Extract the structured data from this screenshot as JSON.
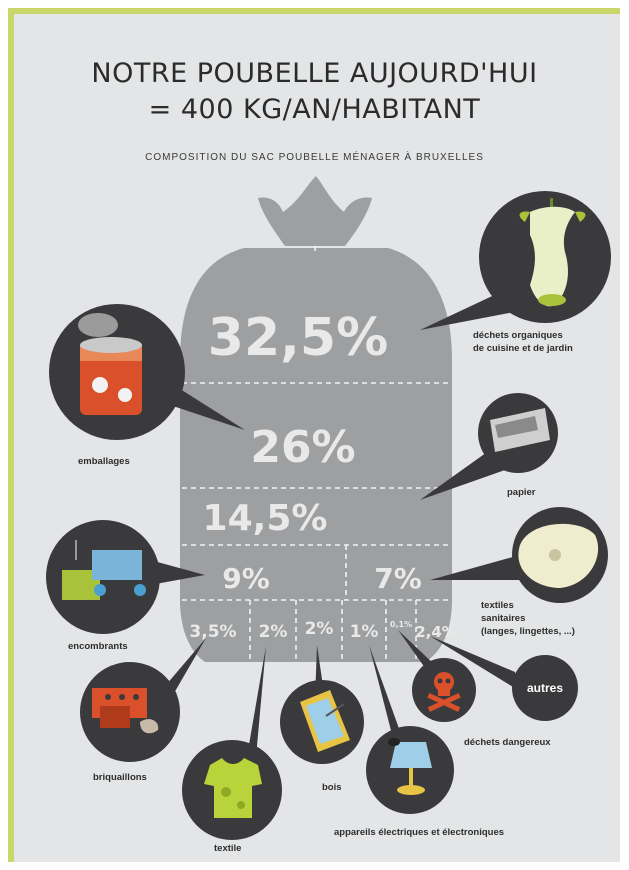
{
  "header": {
    "title_line1": "NOTRE POUBELLE AUJOURD'HUI",
    "title_line2": "= 400 KG/AN/HABITANT",
    "subtitle": "COMPOSITION DU SAC POUBELLE MÉNAGER À BRUXELLES"
  },
  "segments": [
    {
      "id": "organiques",
      "value": "32,5%",
      "label": "déchets organiques\nde cuisine et de jardin",
      "icon": "apple-core-icon"
    },
    {
      "id": "emballages",
      "value": "26%",
      "label": "emballages",
      "icon": "tin-can-icon"
    },
    {
      "id": "papier",
      "value": "14,5%",
      "label": "papier",
      "icon": "newspaper-icon"
    },
    {
      "id": "encombrants",
      "value": "9%",
      "label": "encombrants",
      "icon": "furniture-icon"
    },
    {
      "id": "textiles-sanitaires",
      "value": "7%",
      "label": "textiles\nsanitaires\n(langes, lingettes, ...)",
      "icon": "diaper-icon"
    },
    {
      "id": "briquaillons",
      "value": "3,5%",
      "label": "briquaillons",
      "icon": "brick-icon"
    },
    {
      "id": "textile",
      "value": "2%",
      "label": "textile",
      "icon": "tshirt-icon"
    },
    {
      "id": "bois",
      "value": "2%",
      "label": "bois",
      "icon": "wood-plank-icon"
    },
    {
      "id": "electriques",
      "value": "1%",
      "label": "appareils électriques et électroniques",
      "icon": "lamp-icon"
    },
    {
      "id": "dangereux",
      "value": "0,1%",
      "label": "déchets dangereux",
      "icon": "skull-icon"
    },
    {
      "id": "autres",
      "value": "2,4%",
      "label": "autres",
      "icon": "autres-circle"
    }
  ],
  "colors": {
    "frame_border": "#c9d66a",
    "background": "#e4e5e6",
    "bag": "#9d9fa1",
    "bubble": "#3a3a3c"
  }
}
